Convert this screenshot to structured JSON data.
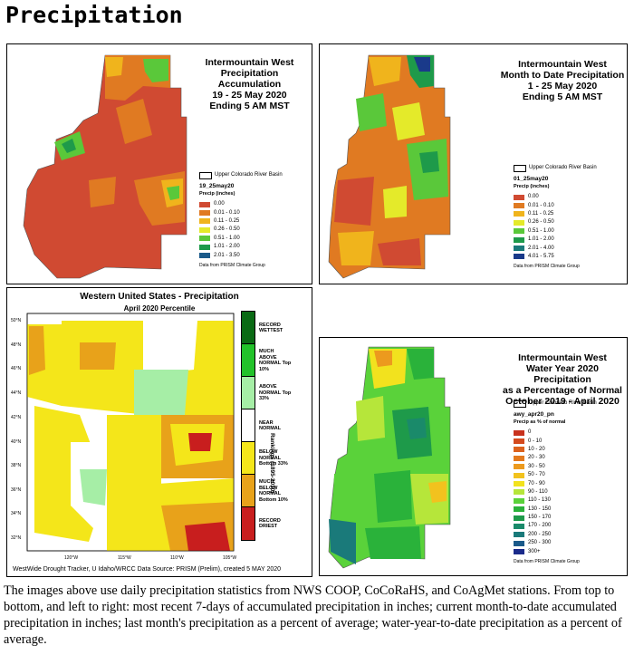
{
  "page_title": "Precipitation",
  "panels": {
    "weekly": {
      "title": [
        "Intermountain West",
        "Precipitation Accumulation",
        "19 - 25 May 2020",
        "Ending 5 AM MST"
      ],
      "basin_label": "Upper Colorado River Basin",
      "code": "19_25may20",
      "unit": "Precip (inches)",
      "legend": [
        {
          "label": "0.00",
          "color": "#d04a32"
        },
        {
          "label": "0.01 - 0.10",
          "color": "#e07a22"
        },
        {
          "label": "0.11 - 0.25",
          "color": "#f0b41c"
        },
        {
          "label": "0.26 - 0.50",
          "color": "#e4ea2a"
        },
        {
          "label": "0.51 - 1.00",
          "color": "#5ac83a"
        },
        {
          "label": "1.01 - 2.00",
          "color": "#1e9a4a"
        },
        {
          "label": "2.01 - 3.50",
          "color": "#1a5a8a"
        }
      ],
      "source": "Data from PRISM Climate Group"
    },
    "monthly": {
      "title": [
        "Intermountain West",
        "Month to Date Precipitation",
        "1 - 25 May 2020",
        "Ending 5 AM MST"
      ],
      "basin_label": "Upper Colorado River Basin",
      "code": "01_25may20",
      "unit": "Precip (inches)",
      "legend": [
        {
          "label": "0.00",
          "color": "#d04a32"
        },
        {
          "label": "0.01 - 0.10",
          "color": "#e07a22"
        },
        {
          "label": "0.11 - 0.25",
          "color": "#f0b41c"
        },
        {
          "label": "0.26 - 0.50",
          "color": "#e4ea2a"
        },
        {
          "label": "0.51 - 1.00",
          "color": "#5ac83a"
        },
        {
          "label": "1.01 - 2.00",
          "color": "#1e9a4a"
        },
        {
          "label": "2.01 - 4.00",
          "color": "#1a7a7a"
        },
        {
          "label": "4.01 - 5.75",
          "color": "#1a3a8a"
        }
      ],
      "source": "Data from PRISM Climate Group"
    },
    "western": {
      "title": "Western United States - Precipitation",
      "subtitle": "April 2020 Percentile",
      "latitudes": [
        "50°N",
        "48°N",
        "46°N",
        "44°N",
        "42°N",
        "40°N",
        "38°N",
        "36°N",
        "34°N",
        "32°N"
      ],
      "longitudes": [
        "120°W",
        "115°W",
        "110°W",
        "105°W"
      ],
      "legend": [
        {
          "label": "RECORD WETTEST",
          "color": "#0a6a14"
        },
        {
          "label": "MUCH ABOVE NORMAL Top 10%",
          "color": "#22c22a"
        },
        {
          "label": "ABOVE NORMAL Top 33%",
          "color": "#a6eea6"
        },
        {
          "label": "NEAR NORMAL",
          "color": "#ffffff"
        },
        {
          "label": "BELOW NORMAL Bottom 33%",
          "color": "#f4e61a"
        },
        {
          "label": "MUCH BELOW NORMAL Bottom 10%",
          "color": "#e8a21a"
        },
        {
          "label": "RECORD DRIEST",
          "color": "#c81e1e"
        }
      ],
      "rankings_label": "Rankings (1895-2010)",
      "footer": "WestWide Drought Tracker, U Idaho/WRCC Data Source: PRISM (Prelim), created  5 MAY 2020"
    },
    "wateryear": {
      "title": [
        "Intermountain West",
        "Water Year 2020 Precipitation",
        "as a Percentage of Normal",
        "October 2019 - April 2020"
      ],
      "basin_label": "Upper Colorado River Basin",
      "code": "awy_apr20_pn",
      "unit": "Precip as % of normal",
      "legend": [
        {
          "label": "0",
          "color": "#c8321e"
        },
        {
          "label": "0 - 10",
          "color": "#d44a1e"
        },
        {
          "label": "10 - 20",
          "color": "#dc621e"
        },
        {
          "label": "20 - 30",
          "color": "#e47a1e"
        },
        {
          "label": "30 - 50",
          "color": "#ec9a1e"
        },
        {
          "label": "50 - 70",
          "color": "#f2c21e"
        },
        {
          "label": "70 - 90",
          "color": "#f2e21e"
        },
        {
          "label": "90 - 110",
          "color": "#b6e63a"
        },
        {
          "label": "110 - 130",
          "color": "#5ad23a"
        },
        {
          "label": "130 - 150",
          "color": "#2ab23a"
        },
        {
          "label": "150 - 170",
          "color": "#1e9a4a"
        },
        {
          "label": "170 - 200",
          "color": "#1a8a6a"
        },
        {
          "label": "200 - 250",
          "color": "#1a7a7a"
        },
        {
          "label": "250 - 300",
          "color": "#1a5a8a"
        },
        {
          "label": "300+",
          "color": "#1a2a8a"
        }
      ],
      "source": "Data from PRISM Climate Group"
    }
  },
  "caption": "The images above use daily precipitation statistics from NWS COOP, CoCoRaHS, and CoAgMet stations. From top to bottom, and left to right: most recent 7-days of accumulated precipitation in inches; current month-to-date accumulated precipitation in inches; last month's precipitation as a percent of average; water-year-to-date precipitation as a percent of average."
}
